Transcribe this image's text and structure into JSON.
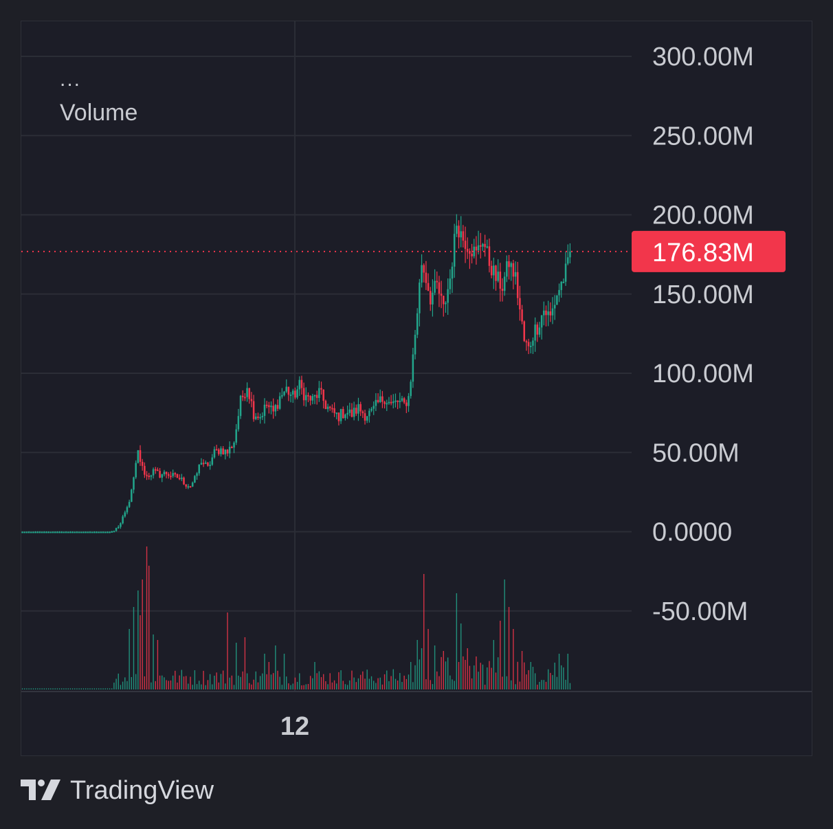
{
  "legend": {
    "menu": "...",
    "title": "Volume"
  },
  "brand": {
    "name": "TradingView"
  },
  "colors": {
    "up": "#22a58b",
    "down": "#f2364b",
    "grid": "#2b2d36",
    "axis_text": "#c9cbd1",
    "last_price_bg": "#f2364b"
  },
  "chart_data": {
    "type": "candlestick",
    "title": "Volume",
    "x_tick_labels": [
      "12"
    ],
    "y_tick_labels": [
      "300.00M",
      "250.00M",
      "200.00M",
      "150.00M",
      "100.00M",
      "50.00M",
      "0.0000",
      "-50.00M"
    ],
    "y_ticks": [
      300,
      250,
      200,
      150,
      100,
      50,
      0,
      -50
    ],
    "ylim": [
      -100,
      325
    ],
    "y_unit": "M",
    "last_value_label": "176.83M",
    "last_value": 176.83,
    "grid": true,
    "keypoints": [
      [
        0,
        0
      ],
      [
        40,
        0
      ],
      [
        42,
        0.5
      ],
      [
        45,
        5
      ],
      [
        48,
        15
      ],
      [
        50,
        25
      ],
      [
        53,
        50
      ],
      [
        55,
        40
      ],
      [
        57,
        35
      ],
      [
        60,
        38
      ],
      [
        63,
        36
      ],
      [
        66,
        37
      ],
      [
        69,
        35
      ],
      [
        72,
        34
      ],
      [
        75,
        30
      ],
      [
        77,
        29
      ],
      [
        79,
        33
      ],
      [
        82,
        45
      ],
      [
        85,
        40
      ],
      [
        88,
        50
      ],
      [
        91,
        52
      ],
      [
        94,
        50
      ],
      [
        97,
        57
      ],
      [
        100,
        82
      ],
      [
        103,
        93
      ],
      [
        106,
        75
      ],
      [
        109,
        73
      ],
      [
        112,
        80
      ],
      [
        115,
        75
      ],
      [
        118,
        85
      ],
      [
        121,
        90
      ],
      [
        124,
        85
      ],
      [
        127,
        92
      ],
      [
        130,
        85
      ],
      [
        133,
        83
      ],
      [
        136,
        88
      ],
      [
        139,
        80
      ],
      [
        142,
        75
      ],
      [
        145,
        73
      ],
      [
        148,
        76
      ],
      [
        151,
        74
      ],
      [
        154,
        78
      ],
      [
        157,
        74
      ],
      [
        160,
        75
      ],
      [
        163,
        81
      ],
      [
        166,
        85
      ],
      [
        169,
        80
      ],
      [
        172,
        82
      ],
      [
        175,
        80
      ],
      [
        177,
        85
      ],
      [
        179,
        110
      ],
      [
        181,
        140
      ],
      [
        183,
        170
      ],
      [
        185,
        160
      ],
      [
        187,
        148
      ],
      [
        190,
        155
      ],
      [
        193,
        140
      ],
      [
        196,
        160
      ],
      [
        199,
        195
      ],
      [
        202,
        185
      ],
      [
        205,
        180
      ],
      [
        208,
        175
      ],
      [
        211,
        185
      ],
      [
        214,
        170
      ],
      [
        217,
        160
      ],
      [
        220,
        155
      ],
      [
        223,
        170
      ],
      [
        226,
        160
      ],
      [
        228,
        140
      ],
      [
        230,
        120
      ],
      [
        232,
        115
      ],
      [
        234,
        125
      ],
      [
        236,
        130
      ],
      [
        239,
        140
      ],
      [
        242,
        135
      ],
      [
        245,
        150
      ],
      [
        248,
        160
      ],
      [
        250,
        168
      ],
      [
        251,
        176.83
      ]
    ],
    "vol_spikes": [
      [
        57,
        5.2
      ],
      [
        55,
        4.0
      ],
      [
        58,
        4.5
      ],
      [
        53,
        3.6
      ],
      [
        51,
        3.0
      ],
      [
        49,
        2.2
      ],
      [
        54,
        2.7
      ],
      [
        60,
        2.0
      ],
      [
        62,
        1.8
      ],
      [
        94,
        2.8
      ],
      [
        98,
        1.7
      ],
      [
        102,
        1.9
      ],
      [
        111,
        1.3
      ],
      [
        113,
        1.0
      ],
      [
        116,
        1.6
      ],
      [
        120,
        1.3
      ],
      [
        134,
        1.0
      ],
      [
        178,
        1.0
      ],
      [
        181,
        1.8
      ],
      [
        183,
        1.5
      ],
      [
        184,
        4.2
      ],
      [
        186,
        2.2
      ],
      [
        189,
        1.6
      ],
      [
        193,
        1.4
      ],
      [
        199,
        3.5
      ],
      [
        201,
        2.4
      ],
      [
        204,
        1.5
      ],
      [
        208,
        1.2
      ],
      [
        216,
        1.8
      ],
      [
        219,
        2.5
      ],
      [
        221,
        4.0
      ],
      [
        223,
        3.0
      ],
      [
        225,
        2.2
      ],
      [
        229,
        1.4
      ],
      [
        233,
        1.0
      ],
      [
        246,
        1.3
      ],
      [
        250,
        1.3
      ]
    ],
    "volume_note": "volume bars shown as histogram below the price pane (no separate scale)"
  }
}
